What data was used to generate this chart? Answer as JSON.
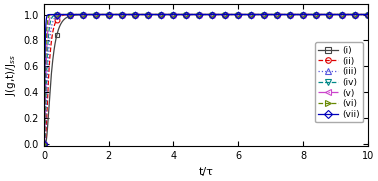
{
  "title": "",
  "xlabel": "t/τ",
  "ylabel": "J(g,t)/J$_{ss}$",
  "xlim": [
    0,
    10
  ],
  "ylim": [
    -0.02,
    1.08
  ],
  "xticks": [
    0,
    2,
    4,
    6,
    8,
    10
  ],
  "yticks": [
    0.0,
    0.2,
    0.4,
    0.6,
    0.8,
    1.0
  ],
  "curves": [
    {
      "label": "(i)",
      "color": "#444444",
      "linestyle": "-",
      "marker": "s",
      "tau": 1.55,
      "t_shift": 0.0
    },
    {
      "label": "(ii)",
      "color": "#dd0000",
      "linestyle": "--",
      "marker": "o",
      "tau": 1.0,
      "t_shift": 0.0
    },
    {
      "label": "(iii)",
      "color": "#5555dd",
      "linestyle": ":",
      "marker": "^",
      "tau": 0.75,
      "t_shift": 0.0
    },
    {
      "label": "(iv)",
      "color": "#008888",
      "linestyle": "--",
      "marker": "v",
      "tau": 0.55,
      "t_shift": 0.0
    },
    {
      "label": "(v)",
      "color": "#cc44cc",
      "linestyle": "-.",
      "marker": "<",
      "tau": 0.42,
      "t_shift": 0.0
    },
    {
      "label": "(vi)",
      "color": "#668800",
      "linestyle": "--",
      "marker": ">",
      "tau": 0.3,
      "t_shift": 0.0
    },
    {
      "label": "(vii)",
      "color": "#0000bb",
      "linestyle": "-",
      "marker": "D",
      "tau": 0.18,
      "t_shift": 0.0
    }
  ],
  "background_color": "#ffffff",
  "figsize": [
    3.78,
    1.81
  ],
  "dpi": 100
}
